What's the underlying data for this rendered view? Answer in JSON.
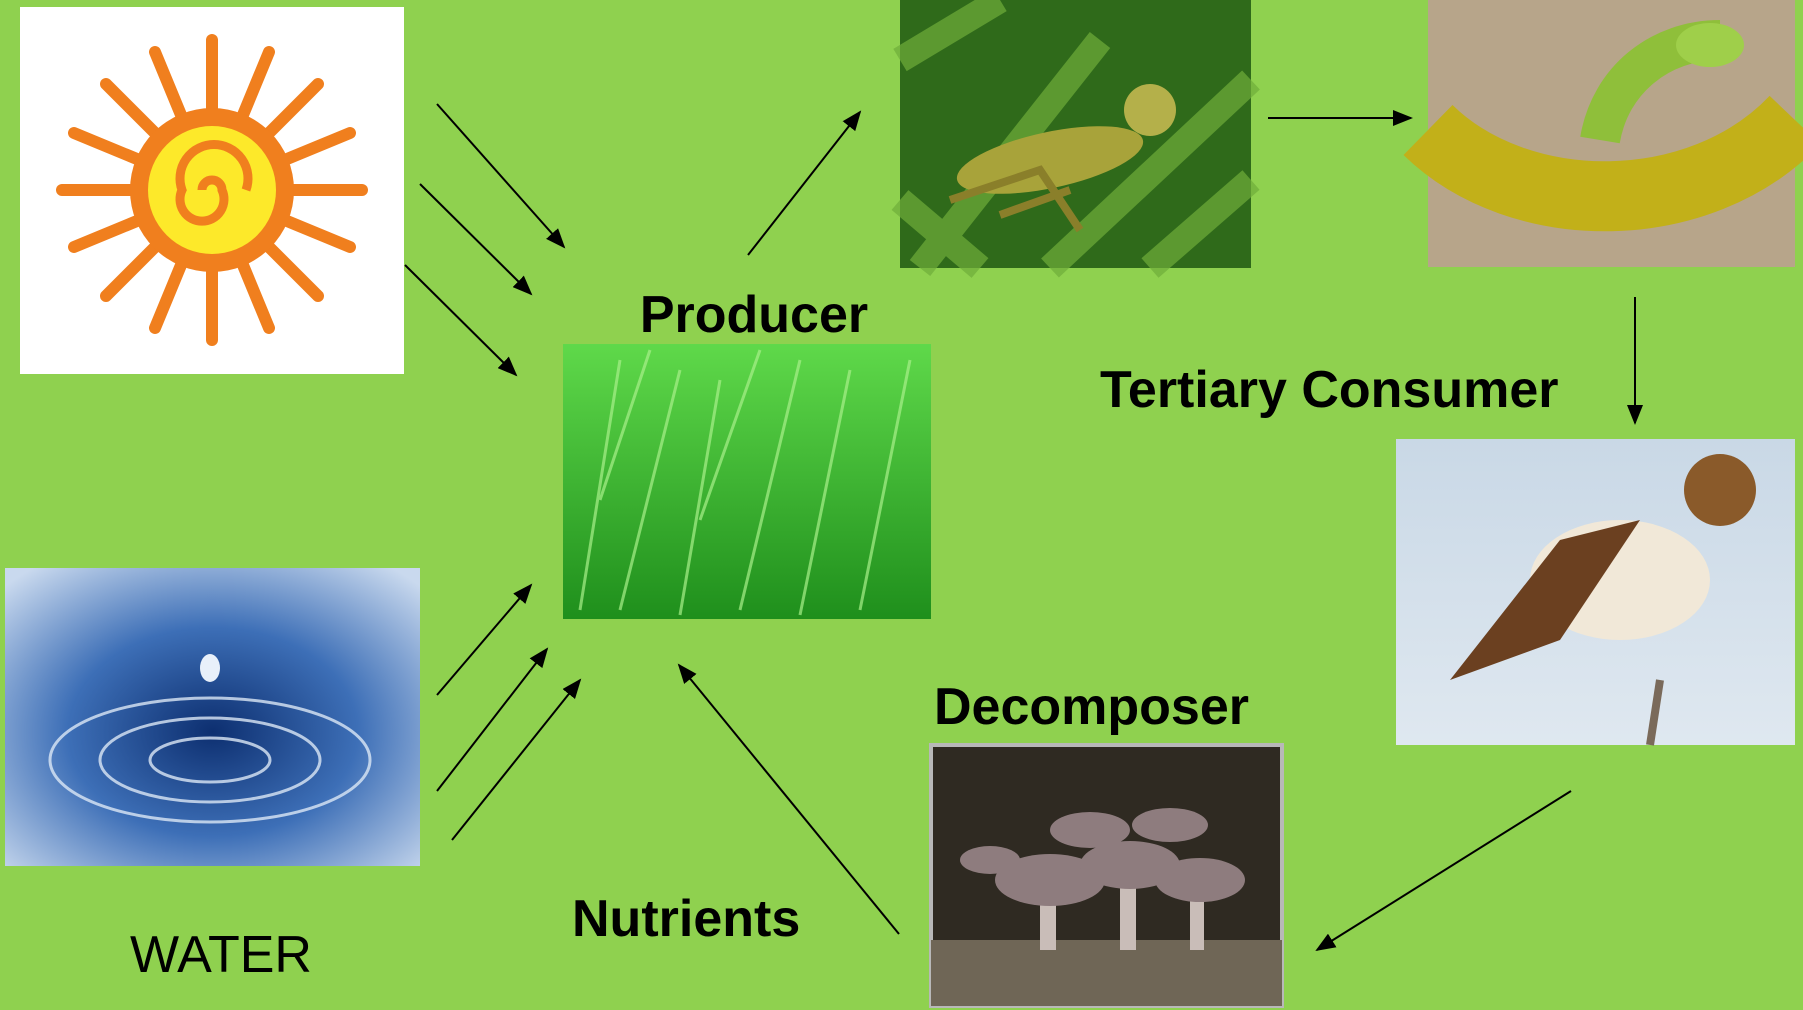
{
  "labels": {
    "producer": "Producer",
    "tertiary_consumer": "Tertiary Consumer",
    "decomposer": "Decomposer",
    "nutrients": "Nutrients",
    "water": "WATER"
  }
}
